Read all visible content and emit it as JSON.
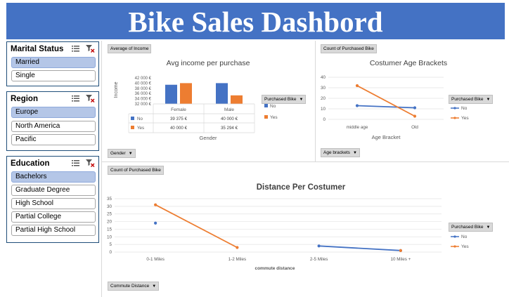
{
  "title": "Bike Sales Dashbord",
  "slicers": {
    "marital": {
      "title": "Marital Status",
      "items": [
        {
          "label": "Married",
          "selected": true
        },
        {
          "label": "Single",
          "selected": false
        }
      ]
    },
    "region": {
      "title": "Region",
      "items": [
        {
          "label": "Europe",
          "selected": true
        },
        {
          "label": "North America",
          "selected": false
        },
        {
          "label": "Pacific",
          "selected": false
        }
      ]
    },
    "education": {
      "title": "Education",
      "items": [
        {
          "label": "Bachelors",
          "selected": true
        },
        {
          "label": "Graduate Degree",
          "selected": false
        },
        {
          "label": "High School",
          "selected": false
        },
        {
          "label": "Partial College",
          "selected": false
        },
        {
          "label": "Partial High School",
          "selected": false
        }
      ]
    }
  },
  "chart_data": [
    {
      "type": "bar",
      "field_button": "Average of Income",
      "axis_button": "Gender",
      "legend_button": "Purchased Bike",
      "title": "Avg income per purchase",
      "ylabel": "Income",
      "xlabel": "Gender",
      "categories": [
        "Female",
        "Male"
      ],
      "yticks": [
        "32 000 €",
        "34 000 €",
        "36 000 €",
        "38 000 €",
        "40 000 €",
        "42 000 €"
      ],
      "ylim": [
        32000,
        42000
      ],
      "series": [
        {
          "name": "No",
          "values": [
            39375,
            40000
          ],
          "labels": [
            "39 375 €",
            "40 000 €"
          ],
          "color": "#4472c4"
        },
        {
          "name": "Yes",
          "values": [
            40000,
            35294
          ],
          "labels": [
            "40 000 €",
            "35 294 €"
          ],
          "color": "#ed7d31"
        }
      ]
    },
    {
      "type": "line",
      "field_button": "Count of Purchased Bike",
      "axis_button": "Age brackets",
      "legend_button": "Purchased Bike",
      "title": "Costumer Age Brackets",
      "xlabel": "Age Bracket",
      "categories": [
        "middle age",
        "Old"
      ],
      "yticks": [
        "0",
        "10",
        "20",
        "30",
        "40"
      ],
      "ylim": [
        0,
        40
      ],
      "series": [
        {
          "name": "No",
          "values": [
            13,
            11
          ],
          "color": "#4472c4"
        },
        {
          "name": "Yes",
          "values": [
            32,
            3
          ],
          "color": "#ed7d31"
        }
      ]
    },
    {
      "type": "line",
      "field_button": "Count of Purchased Bike",
      "axis_button": "Commute Distance",
      "legend_button": "Purchased Bike",
      "title": "Distance Per Costumer",
      "xlabel": "commute distance",
      "categories": [
        "0-1 Miles",
        "1-2 Miles",
        "2-5 Miles",
        "10 Miles +"
      ],
      "yticks": [
        "0",
        "5",
        "10",
        "15",
        "20",
        "25",
        "30",
        "35"
      ],
      "ylim": [
        0,
        35
      ],
      "series": [
        {
          "name": "No",
          "values": [
            19,
            null,
            4,
            1
          ],
          "color": "#4472c4"
        },
        {
          "name": "Yes",
          "values": [
            31,
            3,
            null,
            1
          ],
          "color": "#ed7d31"
        }
      ]
    }
  ],
  "colors": {
    "header": "#4472c4",
    "selected": "#b4c6e7",
    "no": "#4472c4",
    "yes": "#ed7d31"
  },
  "icons": {
    "multi_select": "multi-select-icon",
    "clear_filter": "clear-filter-icon",
    "dropdown": "dropdown-arrow-icon"
  }
}
